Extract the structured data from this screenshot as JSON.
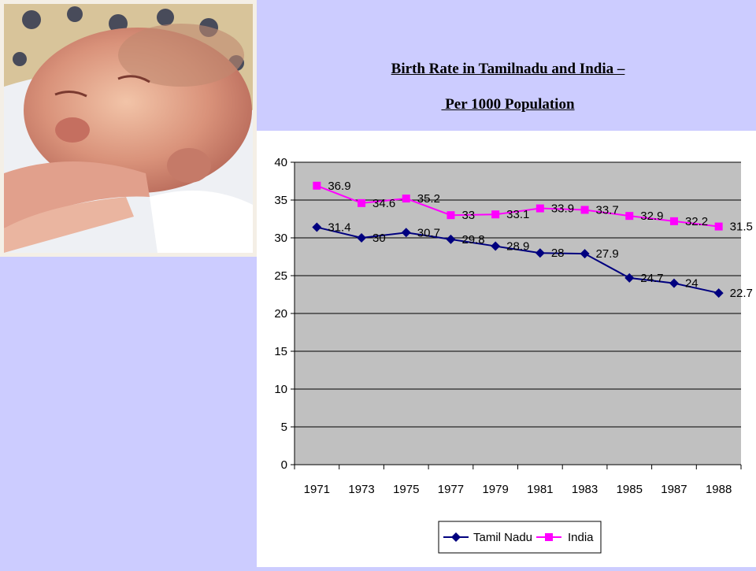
{
  "slide": {
    "title_line1": "Birth Rate in Tamilnadu and India –",
    "title_line2": " Per 1000 Population",
    "photo": "sleeping-newborn-baby"
  },
  "chart_data": {
    "type": "line",
    "title": "",
    "xlabel": "",
    "ylabel": "",
    "categories": [
      "1971",
      "1973",
      "1975",
      "1977",
      "1979",
      "1981",
      "1983",
      "1985",
      "1987",
      "1988"
    ],
    "ylim": [
      0,
      40
    ],
    "yticks": [
      0,
      5,
      10,
      15,
      20,
      25,
      30,
      35,
      40
    ],
    "grid": true,
    "legend_position": "bottom",
    "series": [
      {
        "name": "Tamil Nadu",
        "values": [
          31.4,
          30,
          30.7,
          29.8,
          28.9,
          28,
          27.9,
          24.7,
          24,
          22.7
        ],
        "color": "#00007f",
        "marker": "diamond"
      },
      {
        "name": "India",
        "values": [
          36.9,
          34.6,
          35.2,
          33,
          33.1,
          33.9,
          33.7,
          32.9,
          32.2,
          31.5
        ],
        "color": "#ff00ff",
        "marker": "square"
      }
    ]
  }
}
